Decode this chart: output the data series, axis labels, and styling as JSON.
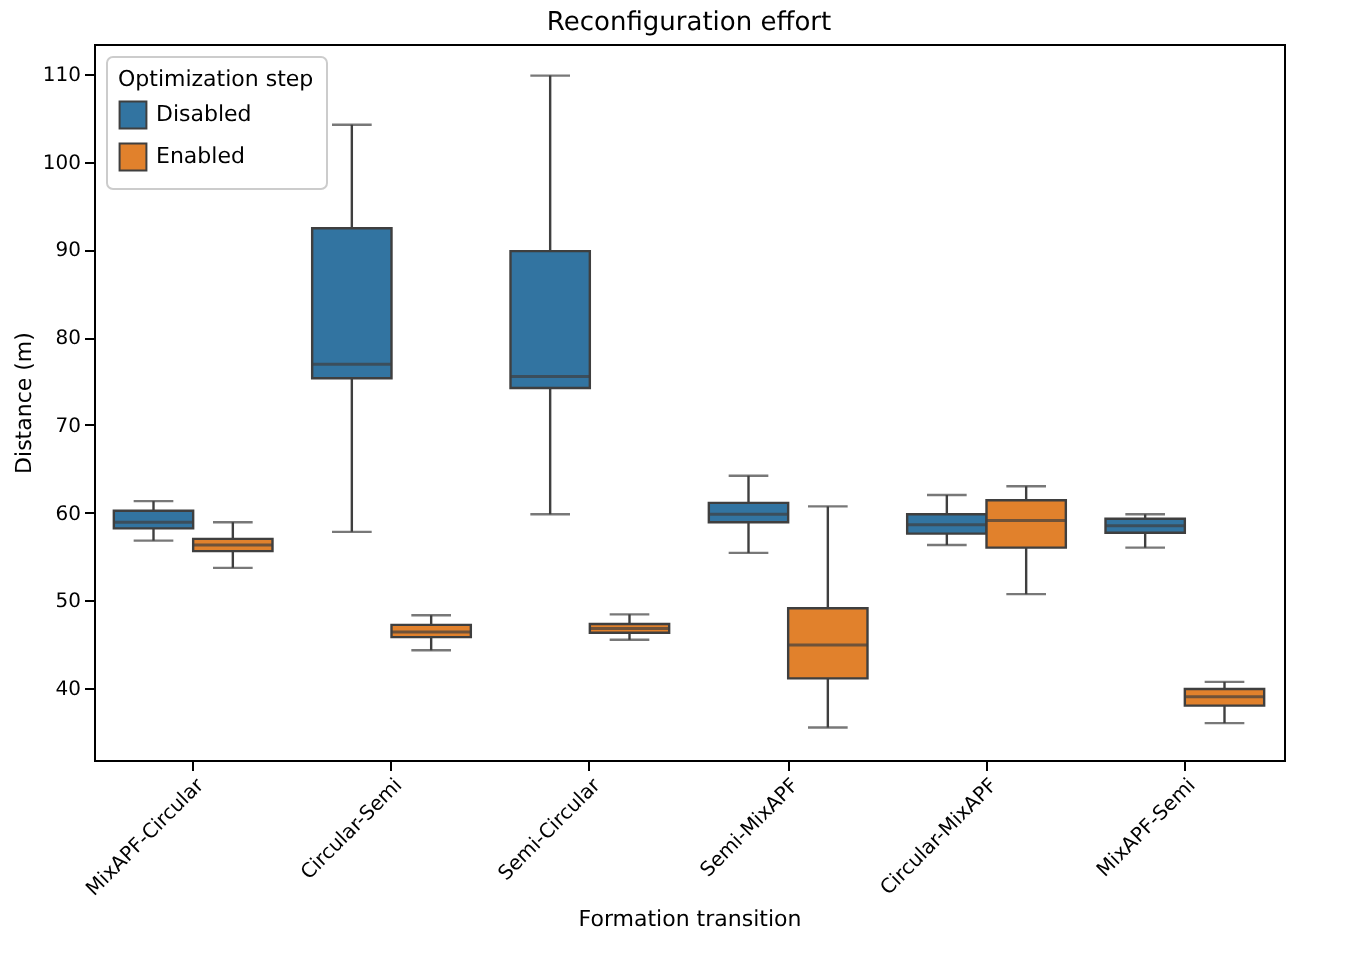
{
  "chart_data": {
    "type": "box",
    "title": "Reconfiguration effort",
    "xlabel": "Formation transition",
    "ylabel": "Distance (m)",
    "legend_title": "Optimization step",
    "legend": "top left",
    "grid": false,
    "categories": [
      "MixAPF-Circular",
      "Circular-Semi",
      "Semi-Circular",
      "Semi-MixAPF",
      "Circular-MixAPF",
      "MixAPF-Semi"
    ],
    "ylim": [
      31.8,
      113.4
    ],
    "yticks": [
      40,
      50,
      60,
      70,
      80,
      90,
      100,
      110
    ],
    "series": [
      {
        "name": "Disabled",
        "color": "#3274a1",
        "boxes": [
          {
            "low": 56.8,
            "q1": 58.2,
            "median": 58.9,
            "q3": 60.2,
            "high": 61.3
          },
          {
            "low": 57.8,
            "q1": 75.3,
            "median": 76.9,
            "q3": 92.4,
            "high": 104.2
          },
          {
            "low": 59.8,
            "q1": 74.2,
            "median": 75.5,
            "q3": 89.8,
            "high": 109.8
          },
          {
            "low": 55.4,
            "q1": 58.9,
            "median": 59.8,
            "q3": 61.1,
            "high": 64.2
          },
          {
            "low": 56.3,
            "q1": 57.6,
            "median": 58.6,
            "q3": 59.8,
            "high": 62.0
          },
          {
            "low": 56.0,
            "q1": 57.7,
            "median": 58.5,
            "q3": 59.3,
            "high": 59.8
          }
        ]
      },
      {
        "name": "Enabled",
        "color": "#e1812c",
        "boxes": [
          {
            "low": 53.7,
            "q1": 55.6,
            "median": 56.3,
            "q3": 57.0,
            "high": 58.9
          },
          {
            "low": 44.3,
            "q1": 45.8,
            "median": 46.4,
            "q3": 47.2,
            "high": 48.3
          },
          {
            "low": 45.5,
            "q1": 46.3,
            "median": 46.8,
            "q3": 47.3,
            "high": 48.4
          },
          {
            "low": 35.5,
            "q1": 41.1,
            "median": 44.9,
            "q3": 49.1,
            "high": 60.7
          },
          {
            "low": 50.7,
            "q1": 56.0,
            "median": 59.1,
            "q3": 61.4,
            "high": 63.0
          },
          {
            "low": 36.0,
            "q1": 38.0,
            "median": 39.0,
            "q3": 39.9,
            "high": 40.7
          }
        ]
      }
    ]
  }
}
